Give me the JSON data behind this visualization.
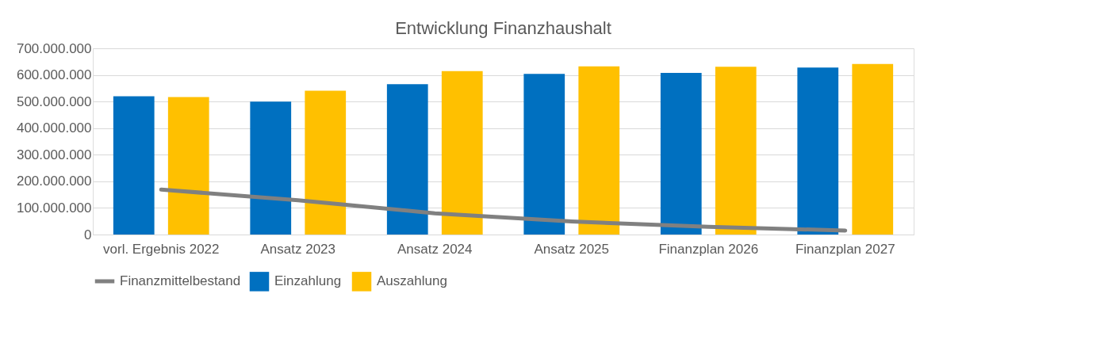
{
  "chart_data": {
    "type": "bar",
    "title": "Entwicklung Finanzhaushalt",
    "categories": [
      "vorl. Ergebnis 2022",
      "Ansatz 2023",
      "Ansatz 2024",
      "Ansatz 2025",
      "Finanzplan 2026",
      "Finanzplan 2027"
    ],
    "series": [
      {
        "name": "Einzahlung",
        "color": "#0070c0",
        "values": [
          520000000,
          500000000,
          565000000,
          604000000,
          608000000,
          628000000
        ]
      },
      {
        "name": "Auszahlung",
        "color": "#ffc000",
        "values": [
          517000000,
          541000000,
          614000000,
          632000000,
          631000000,
          641000000
        ]
      },
      {
        "name": "Finanzmittelbestand",
        "type": "line",
        "color": "#808080",
        "values": [
          169000000,
          129000000,
          80000000,
          49000000,
          29000000,
          15000000
        ]
      }
    ],
    "ylim": [
      0,
      700000000
    ],
    "yticks": [
      {
        "value": 0,
        "label": "0"
      },
      {
        "value": 100000000,
        "label": "100.000.000"
      },
      {
        "value": 200000000,
        "label": "200.000.000"
      },
      {
        "value": 300000000,
        "label": "300.000.000"
      },
      {
        "value": 400000000,
        "label": "400.000.000"
      },
      {
        "value": 500000000,
        "label": "500.000.000"
      },
      {
        "value": 600000000,
        "label": "600.000.000"
      },
      {
        "value": 700000000,
        "label": "700.000.000"
      }
    ],
    "grid": "y",
    "legend": "bottom"
  }
}
